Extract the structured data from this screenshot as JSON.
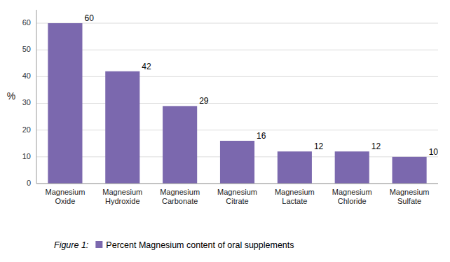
{
  "chart_data": {
    "type": "bar",
    "categories": [
      "Magnesium\nOxide",
      "Magnesium\nHydroxide",
      "Magnesium\nCarbonate",
      "Magnesium\nCitrate",
      "Magnesium\nLactate",
      "Magnesium\nChloride",
      "Magnesium\nSulfate"
    ],
    "series": [
      {
        "name": "Percent Magnesium content of oral supplements",
        "color": "#7b68ae",
        "values": [
          60,
          42,
          29,
          16,
          12,
          12,
          10
        ]
      }
    ],
    "y_label": "%",
    "caption": "Figure 1:",
    "ylim": [
      0,
      65
    ],
    "yticks": [
      0,
      10,
      20,
      30,
      40,
      50,
      60
    ],
    "grid": true,
    "legend": "bottom",
    "data_labels": true
  }
}
